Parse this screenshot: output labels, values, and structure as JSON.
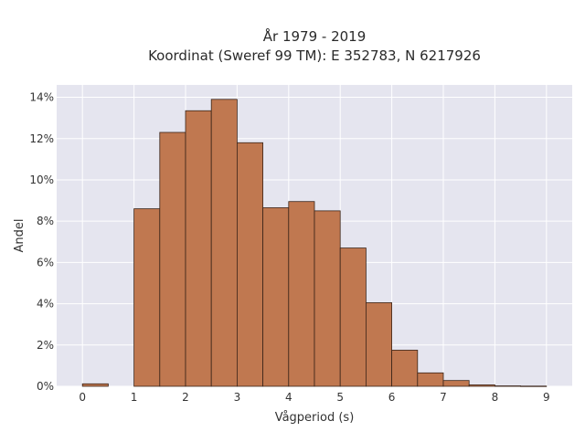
{
  "chart_data": {
    "type": "bar",
    "title_lines": [
      "År 1979 - 2019",
      "Koordinat (Sweref 99 TM): E 352783, N 6217926"
    ],
    "xlabel": "Vågperiod (s)",
    "ylabel": "Andel",
    "xlim": [
      -0.5,
      9.5
    ],
    "ylim": [
      0,
      14.6
    ],
    "x_ticks": [
      0,
      1,
      2,
      3,
      4,
      5,
      6,
      7,
      8,
      9
    ],
    "y_ticks": [
      0,
      2,
      4,
      6,
      8,
      10,
      12,
      14
    ],
    "y_tick_labels": [
      "0%",
      "2%",
      "4%",
      "6%",
      "8%",
      "10%",
      "12%",
      "14%"
    ],
    "bin_width": 0.5,
    "bins": [
      {
        "x0": 0.0,
        "x1": 0.5,
        "value": 0.12
      },
      {
        "x0": 0.5,
        "x1": 1.0,
        "value": 0.0
      },
      {
        "x0": 1.0,
        "x1": 1.5,
        "value": 8.6
      },
      {
        "x0": 1.5,
        "x1": 2.0,
        "value": 12.3
      },
      {
        "x0": 2.0,
        "x1": 2.5,
        "value": 13.35
      },
      {
        "x0": 2.5,
        "x1": 3.0,
        "value": 13.9
      },
      {
        "x0": 3.0,
        "x1": 3.5,
        "value": 11.8
      },
      {
        "x0": 3.5,
        "x1": 4.0,
        "value": 8.65
      },
      {
        "x0": 4.0,
        "x1": 4.5,
        "value": 8.95
      },
      {
        "x0": 4.5,
        "x1": 5.0,
        "value": 8.5
      },
      {
        "x0": 5.0,
        "x1": 5.5,
        "value": 6.7
      },
      {
        "x0": 5.5,
        "x1": 6.0,
        "value": 4.05
      },
      {
        "x0": 6.0,
        "x1": 6.5,
        "value": 1.75
      },
      {
        "x0": 6.5,
        "x1": 7.0,
        "value": 0.65
      },
      {
        "x0": 7.0,
        "x1": 7.5,
        "value": 0.28
      },
      {
        "x0": 7.5,
        "x1": 8.0,
        "value": 0.07
      },
      {
        "x0": 8.0,
        "x1": 8.5,
        "value": 0.02
      },
      {
        "x0": 8.5,
        "x1": 9.0,
        "value": 0.01
      }
    ],
    "grid": true,
    "bar_color": "#c07850",
    "bar_edge_color": "#3a2418",
    "plot_background": "#e5e5ef",
    "grid_color": "#ffffff"
  }
}
